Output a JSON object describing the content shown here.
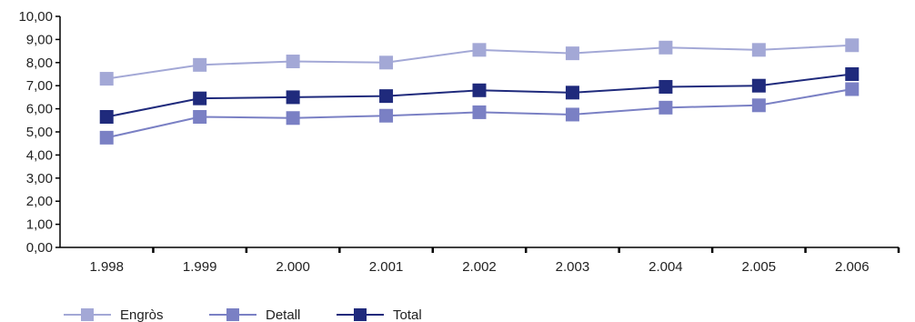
{
  "chart_data": {
    "type": "line",
    "title": "",
    "xlabel": "",
    "ylabel": "",
    "categories": [
      "1.998",
      "1.999",
      "2.000",
      "2.001",
      "2.002",
      "2.003",
      "2.004",
      "2.005",
      "2.006"
    ],
    "ylim": [
      0,
      10
    ],
    "y_ticks": [
      "0,00",
      "1,00",
      "2,00",
      "3,00",
      "4,00",
      "5,00",
      "6,00",
      "7,00",
      "8,00",
      "9,00",
      "10,00"
    ],
    "grid": false,
    "legend_position": "bottom-left",
    "series": [
      {
        "name": "Engròs",
        "color": "#a3a8d6",
        "values": [
          7.3,
          7.9,
          8.05,
          8.0,
          8.55,
          8.4,
          8.65,
          8.55,
          8.75
        ]
      },
      {
        "name": "Detall",
        "color": "#7a80c4",
        "values": [
          4.75,
          5.65,
          5.6,
          5.7,
          5.85,
          5.75,
          6.05,
          6.15,
          6.85
        ]
      },
      {
        "name": "Total",
        "color": "#1f2a7c",
        "values": [
          5.65,
          6.45,
          6.5,
          6.55,
          6.8,
          6.7,
          6.95,
          7.0,
          7.5
        ]
      }
    ]
  }
}
